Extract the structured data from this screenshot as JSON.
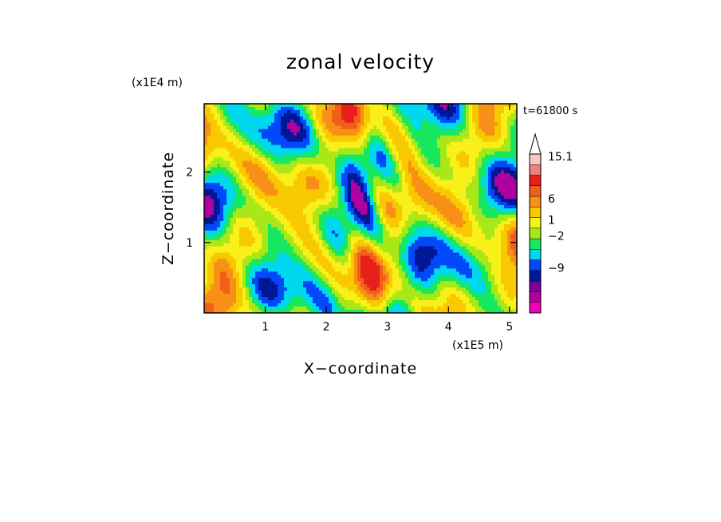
{
  "chart_data": {
    "type": "heatmap",
    "title": "zonal velocity",
    "xlabel": "X−coordinate",
    "ylabel": "Z−coordinate",
    "x_unit": "(x1E5 m)",
    "y_unit": "(x1E4 m)",
    "time_label": "t=61800 s",
    "xlim": [
      0,
      5.12
    ],
    "ylim": [
      0,
      2.97
    ],
    "x_ticks": [
      "1",
      "2",
      "3",
      "4",
      "5"
    ],
    "y_ticks": [
      "1",
      "2"
    ],
    "colorbar": {
      "labels": [
        "15.1",
        "6",
        "1",
        "−2",
        "−9"
      ],
      "label_values": [
        15.1,
        6,
        1,
        -2,
        -9
      ],
      "bands_top_to_bottom": [
        "#f8c8c8",
        "#f08080",
        "#e8201c",
        "#f06018",
        "#f89018",
        "#f8c800",
        "#f8f018",
        "#a8e818",
        "#18e860",
        "#00d8f0",
        "#0048f8",
        "#001898",
        "#7a0098",
        "#b000a0",
        "#f000b8"
      ],
      "top_arrow": true
    },
    "field_palette": [
      "#b000a0",
      "#001898",
      "#0048f8",
      "#00d8f0",
      "#18e860",
      "#a8e818",
      "#f8f018",
      "#f8c800",
      "#f89018",
      "#f06018",
      "#e8201c"
    ]
  }
}
